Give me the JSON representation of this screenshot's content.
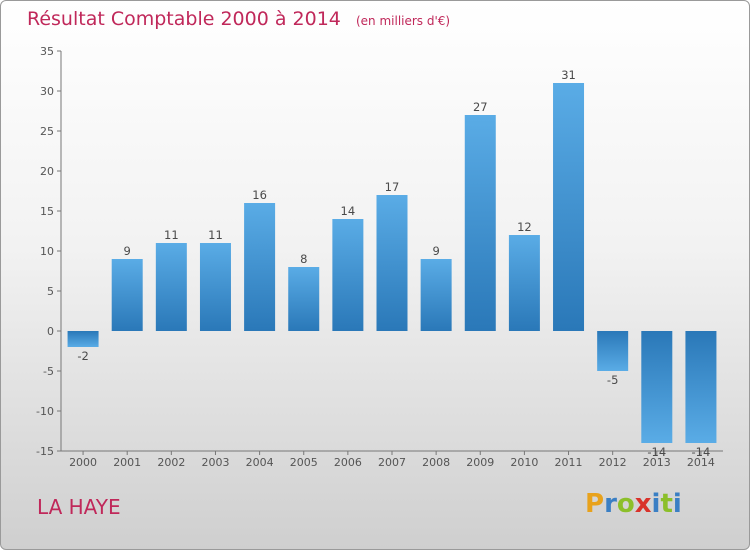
{
  "header": {
    "title": "Résultat Comptable 2000 à 2014",
    "subtitle": "(en milliers d'€)"
  },
  "footer": {
    "commune": "LA HAYE",
    "logo_letters": [
      "P",
      "r",
      "o",
      "x",
      "i",
      "t",
      "i"
    ],
    "logo_colors": [
      "#e8a21c",
      "#3a7fc4",
      "#8cbf2a",
      "#d9322a",
      "#3a7fc4",
      "#8cbf2a",
      "#3a7fc4"
    ]
  },
  "colors": {
    "title": "#c0285a",
    "bar_light": "#5aace6",
    "bar_dark": "#2a78b8"
  },
  "chart_data": {
    "type": "bar",
    "title": "Résultat Comptable 2000 à 2014",
    "subtitle": "(en milliers d'€)",
    "categories": [
      "2000",
      "2001",
      "2002",
      "2003",
      "2004",
      "2005",
      "2006",
      "2007",
      "2008",
      "2009",
      "2010",
      "2011",
      "2012",
      "2013",
      "2014"
    ],
    "values": [
      -2,
      9,
      11,
      11,
      16,
      8,
      14,
      17,
      9,
      27,
      12,
      31,
      -5,
      -14,
      -14
    ],
    "ylim": [
      -15,
      35
    ],
    "yticks": [
      35,
      30,
      25,
      20,
      15,
      10,
      5,
      0,
      -5,
      -10,
      -15
    ],
    "xlabel": "",
    "ylabel": "",
    "grid": false
  }
}
